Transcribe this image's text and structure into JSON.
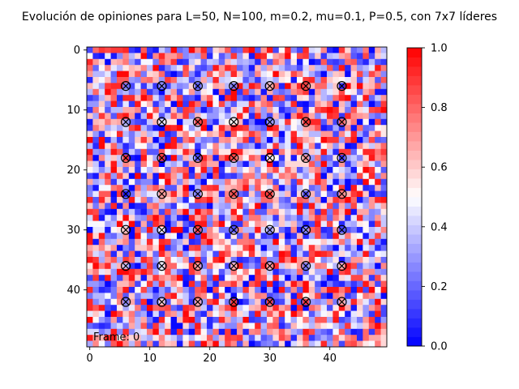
{
  "chart_data": {
    "type": "heatmap",
    "title": "Evolución de opiniones para L=50, N=100, m=0.2, mu=0.1, P=0.5, con 7x7 líderes",
    "grid_size": 50,
    "x_ticks": [
      0,
      10,
      20,
      30,
      40
    ],
    "y_ticks": [
      0,
      10,
      20,
      30,
      40
    ],
    "value_range": [
      0,
      1
    ],
    "colormap": "bwr",
    "colormap_levels": 32,
    "colorbar_ticks": [
      0.0,
      0.2,
      0.4,
      0.6,
      0.8,
      1.0
    ],
    "colorbar_tick_labels": [
      "0.0",
      "0.2",
      "0.4",
      "0.6",
      "0.8",
      "1.0"
    ],
    "leader_marker": "circle-x",
    "leader_color": "#000000",
    "leaders_x": [
      6,
      12,
      18,
      24,
      30,
      36,
      42
    ],
    "leaders_y": [
      6,
      12,
      18,
      24,
      30,
      36,
      42
    ],
    "frame_label": "Frame: 0",
    "colors": {
      "low": "#0000ff",
      "mid": "#ffffff",
      "high": "#ff0000"
    }
  }
}
